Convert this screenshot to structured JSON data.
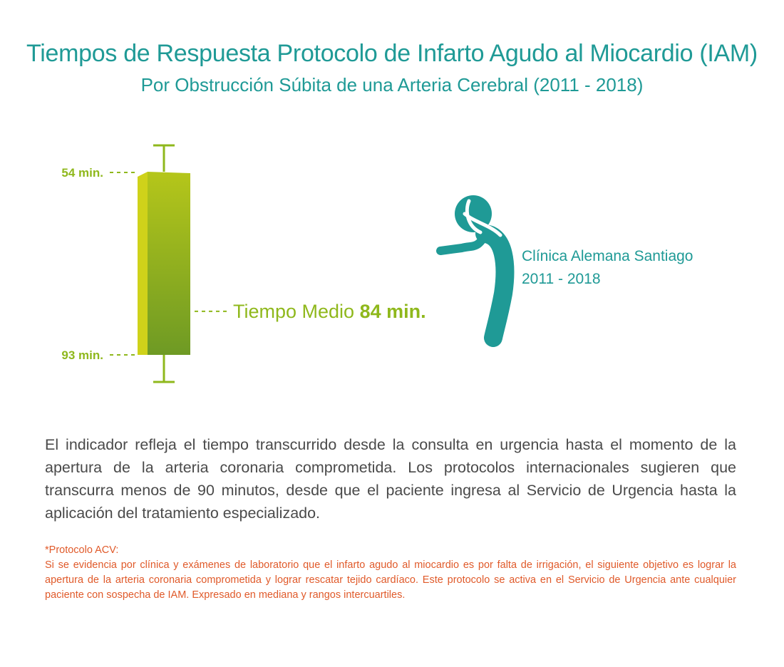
{
  "header": {
    "title": "Tiempos de Respuesta Protocolo de Infarto Agudo al Miocardio (IAM)",
    "subtitle": "Por Obstrucción Súbita de una Arteria Cerebral (2011 - 2018)"
  },
  "chart_data": {
    "type": "box",
    "title": "Tiempos de Respuesta Protocolo de Infarto Agudo al Miocardio (IAM)",
    "subtitle": "Por Obstrucción Súbita de una Arteria Cerebral (2011 - 2018)",
    "unit": "min.",
    "q1": 54,
    "median": 84,
    "q3": 93,
    "q1_label": "54 min.",
    "q3_label": "93 min.",
    "median_text": "Tiempo Medio ",
    "median_value_label": "84 min.",
    "axis_inverted": true,
    "grid": false,
    "legend": "none",
    "colors": {
      "box_top": "#b5c61a",
      "box_bottom": "#6e9a24",
      "box_side": "#cfd21a",
      "whisker": "#8fb81c",
      "figure": "#1f9a96"
    }
  },
  "figure": {
    "icon": "person-chest-pain-icon",
    "caption_line1": "Clínica Alemana Santiago",
    "caption_line2": "2011 - 2018"
  },
  "description": "El indicador refleja el tiempo transcurrido desde la consulta en urgencia hasta el momento de la apertura de la arteria coronaria comprometida. Los protocolos internacionales sugieren que transcurra menos de 90 minutos, desde que el paciente ingresa al Servicio de Urgencia hasta la aplicación del tratamiento especializado.",
  "note": {
    "heading": "*Protocolo ACV:",
    "text": "Si se evidencia por clínica y exámenes de laboratorio que el infarto agudo al miocardio es por falta de irrigación, el siguiente objetivo es lograr la apertura de la arteria coronaria comprometida y lograr rescatar tejido cardíaco. Este protocolo se activa en el Servicio de Urgencia ante cualquier paciente con sospecha de IAM. Expresado en mediana y rangos intercuartiles."
  }
}
